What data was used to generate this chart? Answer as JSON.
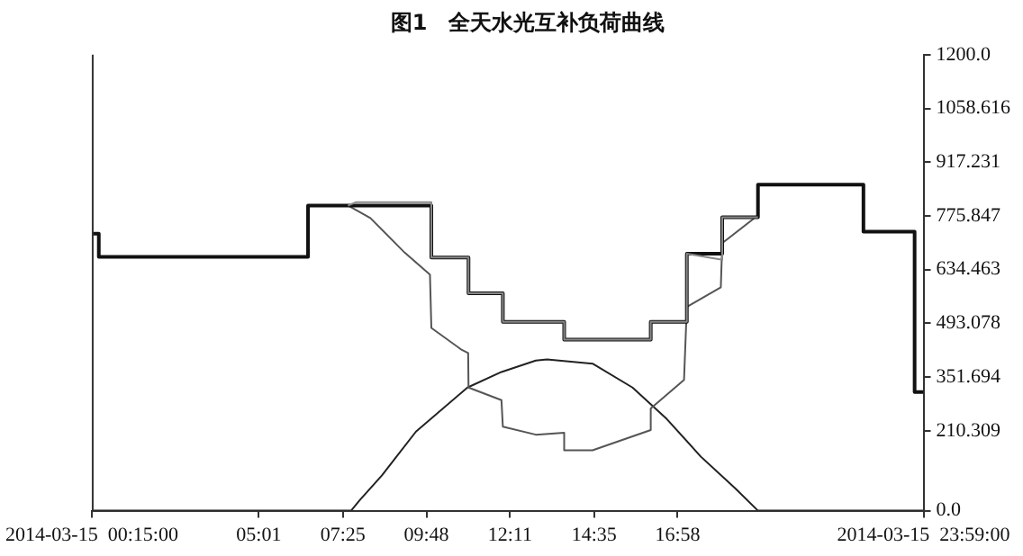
{
  "chart_data": {
    "type": "line",
    "title": "图1　全天水光互补负荷曲线",
    "xlim": [
      0.25,
      23.9833
    ],
    "xticks": [
      {
        "value": 0.25,
        "label": "2014-03-15  00:15:00"
      },
      {
        "value": 5.0167,
        "label": "05:01"
      },
      {
        "value": 7.4167,
        "label": "07:25"
      },
      {
        "value": 9.8,
        "label": "09:48"
      },
      {
        "value": 12.1833,
        "label": "12:11"
      },
      {
        "value": 14.5833,
        "label": "14:35"
      },
      {
        "value": 16.9667,
        "label": "16:58"
      },
      {
        "value": 23.9833,
        "label": "2014-03-15  23:59:00"
      }
    ],
    "ylim": [
      0,
      1200
    ],
    "yticks": [
      {
        "value": 0,
        "label": "0.0"
      },
      {
        "value": 210.309,
        "label": "210.309"
      },
      {
        "value": 351.694,
        "label": "351.694"
      },
      {
        "value": 493.078,
        "label": "493.078"
      },
      {
        "value": 634.463,
        "label": "634.463"
      },
      {
        "value": 775.847,
        "label": "775.847"
      },
      {
        "value": 917.231,
        "label": "917.231"
      },
      {
        "value": 1058.616,
        "label": "1058.616"
      },
      {
        "value": 1200,
        "label": "1200.0"
      }
    ],
    "grid": false,
    "legend": false,
    "marker": "none",
    "series": [
      {
        "color": "#888888",
        "x": [
          7.56,
          7.8,
          9.94,
          9.94,
          11.0,
          11.0,
          11.98,
          11.98,
          13.73,
          13.73,
          16.2,
          16.2,
          17.23,
          17.23,
          18.24,
          18.24,
          19.26
        ],
        "values": [
          803,
          812,
          812,
          666,
          666,
          572,
          572,
          497,
          497,
          450,
          450,
          497,
          497,
          676,
          660,
          772,
          772
        ]
      },
      {
        "color": "#111111",
        "x": [
          0.25,
          0.45,
          0.45,
          6.42,
          6.42,
          9.94,
          9.94,
          11.0,
          11.0,
          11.98,
          11.98,
          13.73,
          13.73,
          16.2,
          16.2,
          17.23,
          17.23,
          18.24,
          18.24,
          19.26,
          19.26,
          22.27,
          22.27,
          23.73,
          23.73,
          23.9833
        ],
        "values": [
          729,
          729,
          668,
          668,
          803,
          803,
          666,
          666,
          572,
          572,
          497,
          497,
          450,
          450,
          497,
          497,
          676,
          676,
          772,
          772,
          858,
          858,
          734,
          734,
          312,
          312
        ]
      },
      {
        "color": "#555555",
        "x": [
          7.56,
          8.2,
          9.18,
          9.9,
          9.94,
          10.81,
          10.99,
          11.0,
          11.94,
          11.98,
          12.92,
          13.73,
          13.73,
          14.54,
          16.2,
          16.2,
          17.15,
          17.23,
          18.2,
          18.24,
          19.23,
          19.26
        ],
        "values": [
          803,
          770,
          679,
          621,
          481,
          423,
          415,
          324,
          291,
          221,
          200,
          205,
          159,
          159,
          212,
          269,
          344,
          536,
          588,
          704,
          775,
          858
        ]
      },
      {
        "color": "#222222",
        "x": [
          0.25,
          7.65,
          7.88,
          8.53,
          9.5,
          10.97,
          11.94,
          12.92,
          13.24,
          14.54,
          15.68,
          16.66,
          17.63,
          18.61,
          19.26,
          23.9833
        ],
        "values": [
          0,
          0,
          26,
          93,
          208,
          324,
          365,
          395,
          398,
          387,
          324,
          241,
          142,
          59,
          0,
          0
        ]
      }
    ]
  }
}
